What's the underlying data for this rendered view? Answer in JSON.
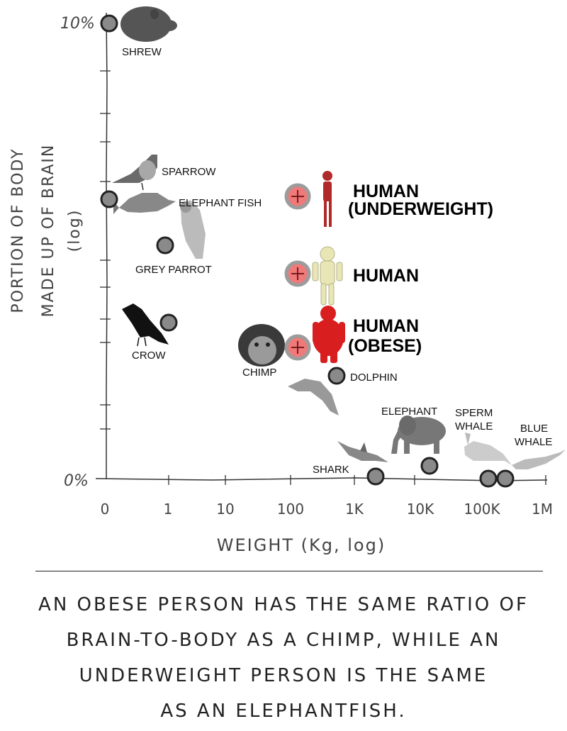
{
  "chart_data": {
    "type": "scatter",
    "title": "",
    "xlabel": "WEIGHT (Kg, log)",
    "ylabel_lines": [
      "PORTION OF BODY",
      "MADE UP OF BRAIN",
      "(log)"
    ],
    "x_scale": "log",
    "y_scale": "log",
    "x_ticks": [
      "0",
      "1",
      "10",
      "100",
      "1K",
      "10K",
      "100K",
      "1M"
    ],
    "y_tick_top": "10%",
    "y_tick_bottom": "0%",
    "points": [
      {
        "name": "SHREW",
        "x": 0.01,
        "y": 10,
        "highlight": false
      },
      {
        "name": "ELEPHANT FISH",
        "x": 0.01,
        "y": 3.1,
        "highlight": false
      },
      {
        "name": "SPARROW",
        "x": 0.02,
        "y": 3.0,
        "highlight": false
      },
      {
        "name": "GREY PARROT",
        "x": 0.7,
        "y": 2.4,
        "highlight": false
      },
      {
        "name": "CROW",
        "x": 1.0,
        "y": 1.6,
        "highlight": false
      },
      {
        "name": "CHIMP",
        "x": 50,
        "y": 1.3,
        "highlight": false
      },
      {
        "name": "HUMAN (UNDERWEIGHT)",
        "x": 130,
        "y": 3.0,
        "highlight": true
      },
      {
        "name": "HUMAN",
        "x": 130,
        "y": 2.0,
        "highlight": true
      },
      {
        "name": "HUMAN (OBESE)",
        "x": 130,
        "y": 1.3,
        "highlight": true
      },
      {
        "name": "DOLPHIN",
        "x": 500,
        "y": 1.1,
        "highlight": false
      },
      {
        "name": "SHARK",
        "x": 1500,
        "y": 0.6,
        "highlight": false
      },
      {
        "name": "ELEPHANT",
        "x": 10000,
        "y": 0.62,
        "highlight": false
      },
      {
        "name": "SPERM WHALE",
        "x": 100000,
        "y": 0.6,
        "highlight": false
      },
      {
        "name": "BLUE WHALE",
        "x": 150000,
        "y": 0.6,
        "highlight": false
      }
    ]
  },
  "labels": {
    "shrew": "SHREW",
    "sparrow": "SPARROW",
    "elephant_fish": "ELEPHANT FISH",
    "grey_parrot": "GREY PARROT",
    "crow": "CROW",
    "chimp": "CHIMP",
    "dolphin": "DOLPHIN",
    "elephant": "ELEPHANT",
    "sperm_whale_1": "SPERM",
    "sperm_whale_2": "WHALE",
    "blue_whale_1": "BLUE",
    "blue_whale_2": "WHALE",
    "shark": "SHARK",
    "human_underweight_1": "HUMAN",
    "human_underweight_2": "(UNDERWEIGHT)",
    "human": "HUMAN",
    "human_obese_1": "HUMAN",
    "human_obese_2": "(OBESE)"
  },
  "axis_text": {
    "y_top": "10%",
    "y_bottom": "0%",
    "x_title": "WEIGHT (Kg, log)",
    "y_title_1": "PORTION OF BODY",
    "y_title_2": "MADE UP OF BRAIN",
    "y_title_3": "(log)",
    "x_ticks": [
      "0",
      "1",
      "10",
      "100",
      "1K",
      "10K",
      "100K",
      "1M"
    ]
  },
  "caption": {
    "line1": "AN OBESE PERSON HAS THE SAME RATIO OF",
    "line2": "BRAIN-TO-BODY AS A CHIMP, WHILE AN",
    "line3": "UNDERWEIGHT PERSON IS THE SAME",
    "line4": "AS AN ELEPHANTFISH."
  },
  "colors": {
    "marker_fill": "#8a8a8a",
    "marker_ring": "#222222",
    "highlight_fill": "#f07a7a",
    "highlight_ring": "#9c9c9c",
    "underweight_figure": "#b02a2a",
    "normal_figure": "#e8e6b4",
    "obese_figure": "#d81e1e"
  }
}
